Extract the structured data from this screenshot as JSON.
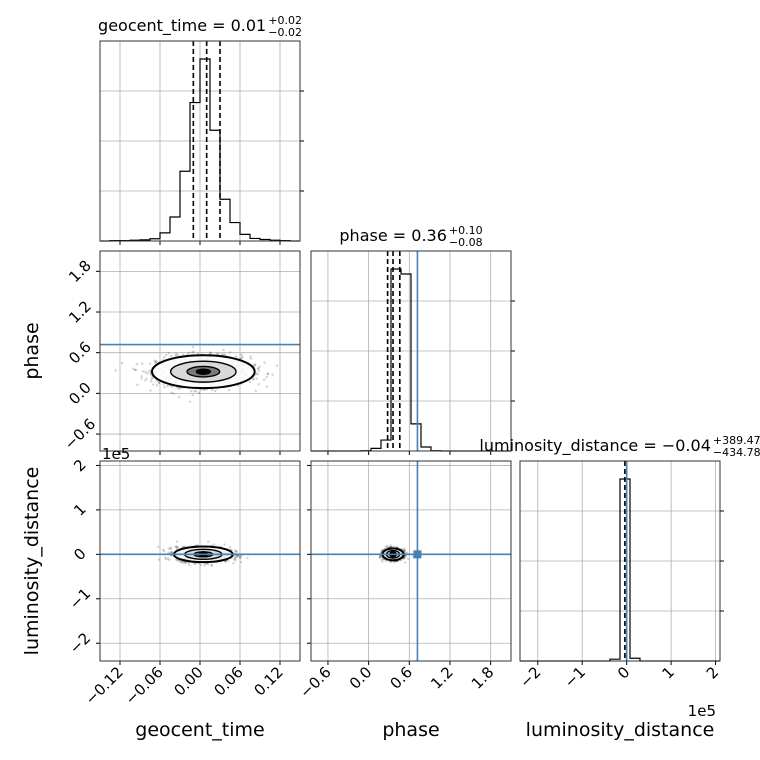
{
  "chart_data": {
    "type": "corner",
    "truth_color": "#4682b4",
    "hist_color": "#000000",
    "grid": true,
    "parameters": [
      {
        "name": "geocent_time",
        "xlabel": "geocent_time",
        "range": [
          -0.15,
          0.15
        ],
        "ticks": [
          -0.12,
          -0.06,
          0.0,
          0.06,
          0.12
        ],
        "tick_labels": [
          "−0.12",
          "−0.06",
          "0.00",
          "0.06",
          "0.12"
        ],
        "scale_label": ""
      },
      {
        "name": "phase",
        "xlabel": "phase",
        "range": [
          -0.85,
          2.1
        ],
        "ticks": [
          -0.6,
          0.0,
          0.6,
          1.2,
          1.8
        ],
        "tick_labels": [
          "−0.6",
          "0.0",
          "0.6",
          "1.2",
          "1.8"
        ],
        "scale_label": ""
      },
      {
        "name": "luminosity_distance",
        "xlabel": "luminosity_distance",
        "range": [
          -2.4,
          2.1
        ],
        "ticks": [
          -2,
          -1,
          0,
          1,
          2
        ],
        "tick_labels": [
          "−2",
          "−1",
          "0",
          "1",
          "2"
        ],
        "scale_label": "1e5"
      }
    ],
    "titles": [
      {
        "param": "geocent_time",
        "text": "geocent_time = 0.01",
        "sup": "+0.02",
        "sub": "−0.02"
      },
      {
        "param": "phase",
        "text": "phase = 0.36",
        "sup": "+0.10",
        "sub": "−0.08"
      },
      {
        "param": "luminosity_distance",
        "text": "luminosity_distance = −0.04",
        "sup": "+389.47",
        "sub": "−434.78"
      }
    ],
    "truths": {
      "geocent_time": null,
      "phase": 0.72,
      "luminosity_distance": 0.0
    },
    "histograms": [
      {
        "param": "geocent_time",
        "bin_edges": [
          -0.15,
          -0.135,
          -0.12,
          -0.105,
          -0.09,
          -0.075,
          -0.06,
          -0.045,
          -0.03,
          -0.015,
          0.0,
          0.015,
          0.03,
          0.045,
          0.06,
          0.075,
          0.09,
          0.105,
          0.12,
          0.135,
          0.15
        ],
        "counts": [
          0,
          1,
          1,
          2,
          3,
          6,
          22,
          65,
          189,
          375,
          493,
          300,
          113,
          50,
          18,
          7,
          4,
          2,
          1,
          0
        ],
        "quantiles": [
          -0.01,
          0.01,
          0.03
        ]
      },
      {
        "param": "phase",
        "bin_edges": [
          -0.85,
          -0.7025,
          -0.555,
          -0.4075,
          -0.26,
          -0.1125,
          0.035,
          0.1825,
          0.33,
          0.4775,
          0.625,
          0.7725,
          0.92,
          1.0675,
          1.215,
          1.3625,
          1.51,
          1.6575,
          1.805,
          1.9525,
          2.1
        ],
        "counts": [
          0,
          0,
          0,
          0,
          0,
          1,
          8,
          33,
          550,
          535,
          82,
          12,
          1,
          0,
          0,
          0,
          0,
          0,
          0,
          0
        ],
        "quantiles": [
          0.28,
          0.36,
          0.46
        ]
      },
      {
        "param": "luminosity_distance",
        "bin_edges": [
          -2.4,
          -2.175,
          -1.95,
          -1.725,
          -1.5,
          -1.275,
          -1.05,
          -0.825,
          -0.6,
          -0.375,
          -0.15,
          0.075,
          0.3,
          0.525,
          0.75,
          0.975,
          1.2,
          1.425,
          1.65,
          1.875,
          2.1
        ],
        "counts": [
          0,
          0,
          0,
          0,
          0,
          0,
          0,
          0,
          0,
          1,
          100,
          1.5,
          0,
          0,
          0,
          0,
          0,
          0,
          0,
          0
        ],
        "quantiles": [
          -0.04
        ]
      }
    ],
    "pairs": [
      {
        "x": "geocent_time",
        "y": "phase",
        "center": [
          0.005,
          0.32
        ],
        "spread": [
          0.035,
          0.11
        ]
      },
      {
        "x": "geocent_time",
        "y": "luminosity_distance",
        "center": [
          0.005,
          0.0
        ],
        "spread": [
          0.02,
          0.08
        ]
      },
      {
        "x": "phase",
        "y": "luminosity_distance",
        "center": [
          0.36,
          0.0
        ],
        "spread": [
          0.07,
          0.06
        ]
      }
    ]
  }
}
